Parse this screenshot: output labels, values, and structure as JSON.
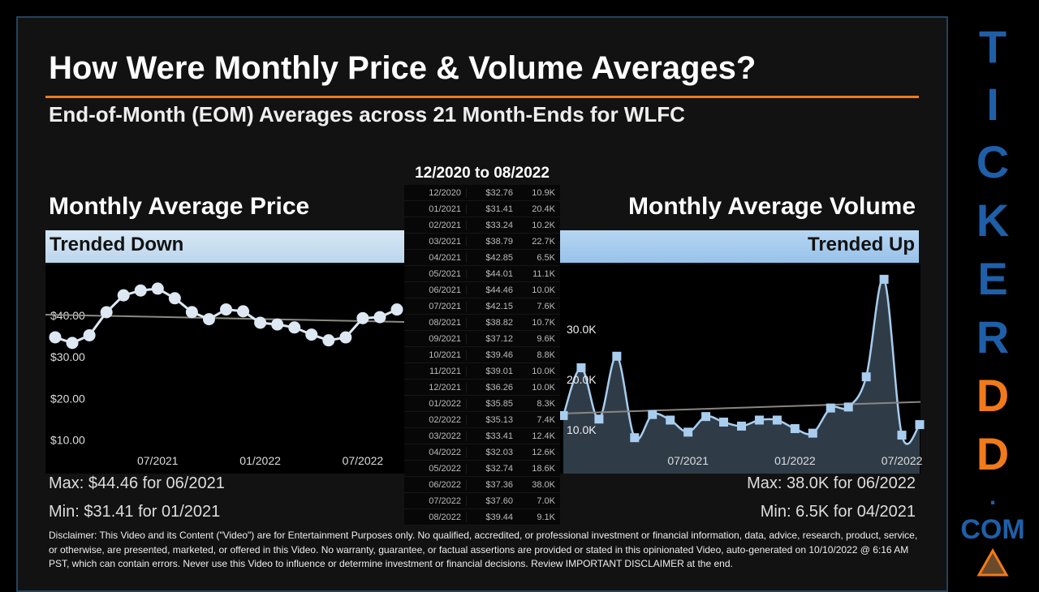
{
  "header": {
    "title": "How Were Monthly Price & Volume Averages?",
    "subtitle": "End-of-Month (EOM) Averages across 21 Month-Ends for WLFC"
  },
  "table": {
    "heading": "12/2020 to 08/2022"
  },
  "price_panel": {
    "title": "Monthly Average Price",
    "trend": "Trended Down",
    "max": "Max: $44.46 for 06/2021",
    "min": "Min: $31.41 for 01/2021"
  },
  "volume_panel": {
    "title": "Monthly Average Volume",
    "trend": "Trended Up",
    "max": "Max: 38.0K for 06/2022",
    "min": "Min: 6.5K for 04/2021"
  },
  "disclaimer": "Disclaimer: This Video and its Content (\"Video\") are for Entertainment Purposes only. No qualified, accredited, or professional investment or financial information, data, advice, research, product, service, or otherwise, are presented, marketed, or offered in this Video. No warranty, guarantee, or factual assertions are provided or stated in this opinionated Video, auto-generated on 10/10/2022 @ 6:16 AM PST, which can contain errors. Never use this Video to influence or determine investment or financial decisions. Review IMPORTANT DISCLAIMER at the end.",
  "logo": {
    "letters": [
      "T",
      "I",
      "C",
      "K",
      "E",
      "R",
      "D",
      "D",
      "."
    ],
    "suffix": "COM",
    "blue": "#1e5fa8",
    "orange": "#f07a1a"
  },
  "colors": {
    "accent": "#f07a1a",
    "price_banner": "#c8def0",
    "volume_banner": "#a8cdee",
    "price_line": "#dde8f2",
    "volume_line": "#a8cdee"
  },
  "chart_data": [
    {
      "type": "line",
      "categories": [
        "12/2020",
        "01/2021",
        "02/2021",
        "03/2021",
        "04/2021",
        "05/2021",
        "06/2021",
        "07/2021",
        "08/2021",
        "09/2021",
        "10/2021",
        "11/2021",
        "12/2021",
        "01/2022",
        "02/2022",
        "03/2022",
        "04/2022",
        "05/2022",
        "06/2022",
        "07/2022",
        "08/2022"
      ],
      "values": [
        32.76,
        31.41,
        33.24,
        38.79,
        42.85,
        44.01,
        44.46,
        42.15,
        38.82,
        37.12,
        39.46,
        39.01,
        36.26,
        35.85,
        35.13,
        33.41,
        32.03,
        32.74,
        37.36,
        37.6,
        39.44
      ],
      "value_labels": [
        "$32.76",
        "$31.41",
        "$33.24",
        "$38.79",
        "$42.85",
        "$44.01",
        "$44.46",
        "$42.15",
        "$38.82",
        "$37.12",
        "$39.46",
        "$39.01",
        "$36.26",
        "$35.85",
        "$35.13",
        "$33.41",
        "$32.03",
        "$32.74",
        "$37.36",
        "$37.60",
        "$39.44"
      ],
      "yticks": [
        {
          "v": 10,
          "label": "$10.00"
        },
        {
          "v": 20,
          "label": "$20.00"
        },
        {
          "v": 30,
          "label": "$30.00"
        },
        {
          "v": 40,
          "label": "$40.00"
        }
      ],
      "xticks": [
        "07/2021",
        "01/2022",
        "07/2022"
      ],
      "trendline": true,
      "grid": false
    },
    {
      "type": "area",
      "categories": [
        "12/2020",
        "01/2021",
        "02/2021",
        "03/2021",
        "04/2021",
        "05/2021",
        "06/2021",
        "07/2021",
        "08/2021",
        "09/2021",
        "10/2021",
        "11/2021",
        "12/2021",
        "01/2022",
        "02/2022",
        "03/2022",
        "04/2022",
        "05/2022",
        "06/2022",
        "07/2022",
        "08/2022"
      ],
      "values": [
        10.9,
        20.4,
        10.2,
        22.7,
        6.5,
        11.1,
        10.0,
        7.6,
        10.7,
        9.6,
        8.8,
        10.0,
        10.0,
        8.3,
        7.4,
        12.4,
        12.6,
        18.6,
        38.0,
        7.0,
        9.1
      ],
      "value_labels": [
        "10.9K",
        "20.4K",
        "10.2K",
        "22.7K",
        "6.5K",
        "11.1K",
        "10.0K",
        "7.6K",
        "10.7K",
        "9.6K",
        "8.8K",
        "10.0K",
        "10.0K",
        "8.3K",
        "7.4K",
        "12.4K",
        "12.6K",
        "18.6K",
        "38.0K",
        "7.0K",
        "9.1K"
      ],
      "unit": "K",
      "yticks": [
        {
          "v": 10,
          "label": "10.0K"
        },
        {
          "v": 20,
          "label": "20.0K"
        },
        {
          "v": 30,
          "label": "30.0K"
        }
      ],
      "xticks": [
        "07/2021",
        "01/2022",
        "07/2022"
      ],
      "trendline": true,
      "grid": false
    }
  ]
}
